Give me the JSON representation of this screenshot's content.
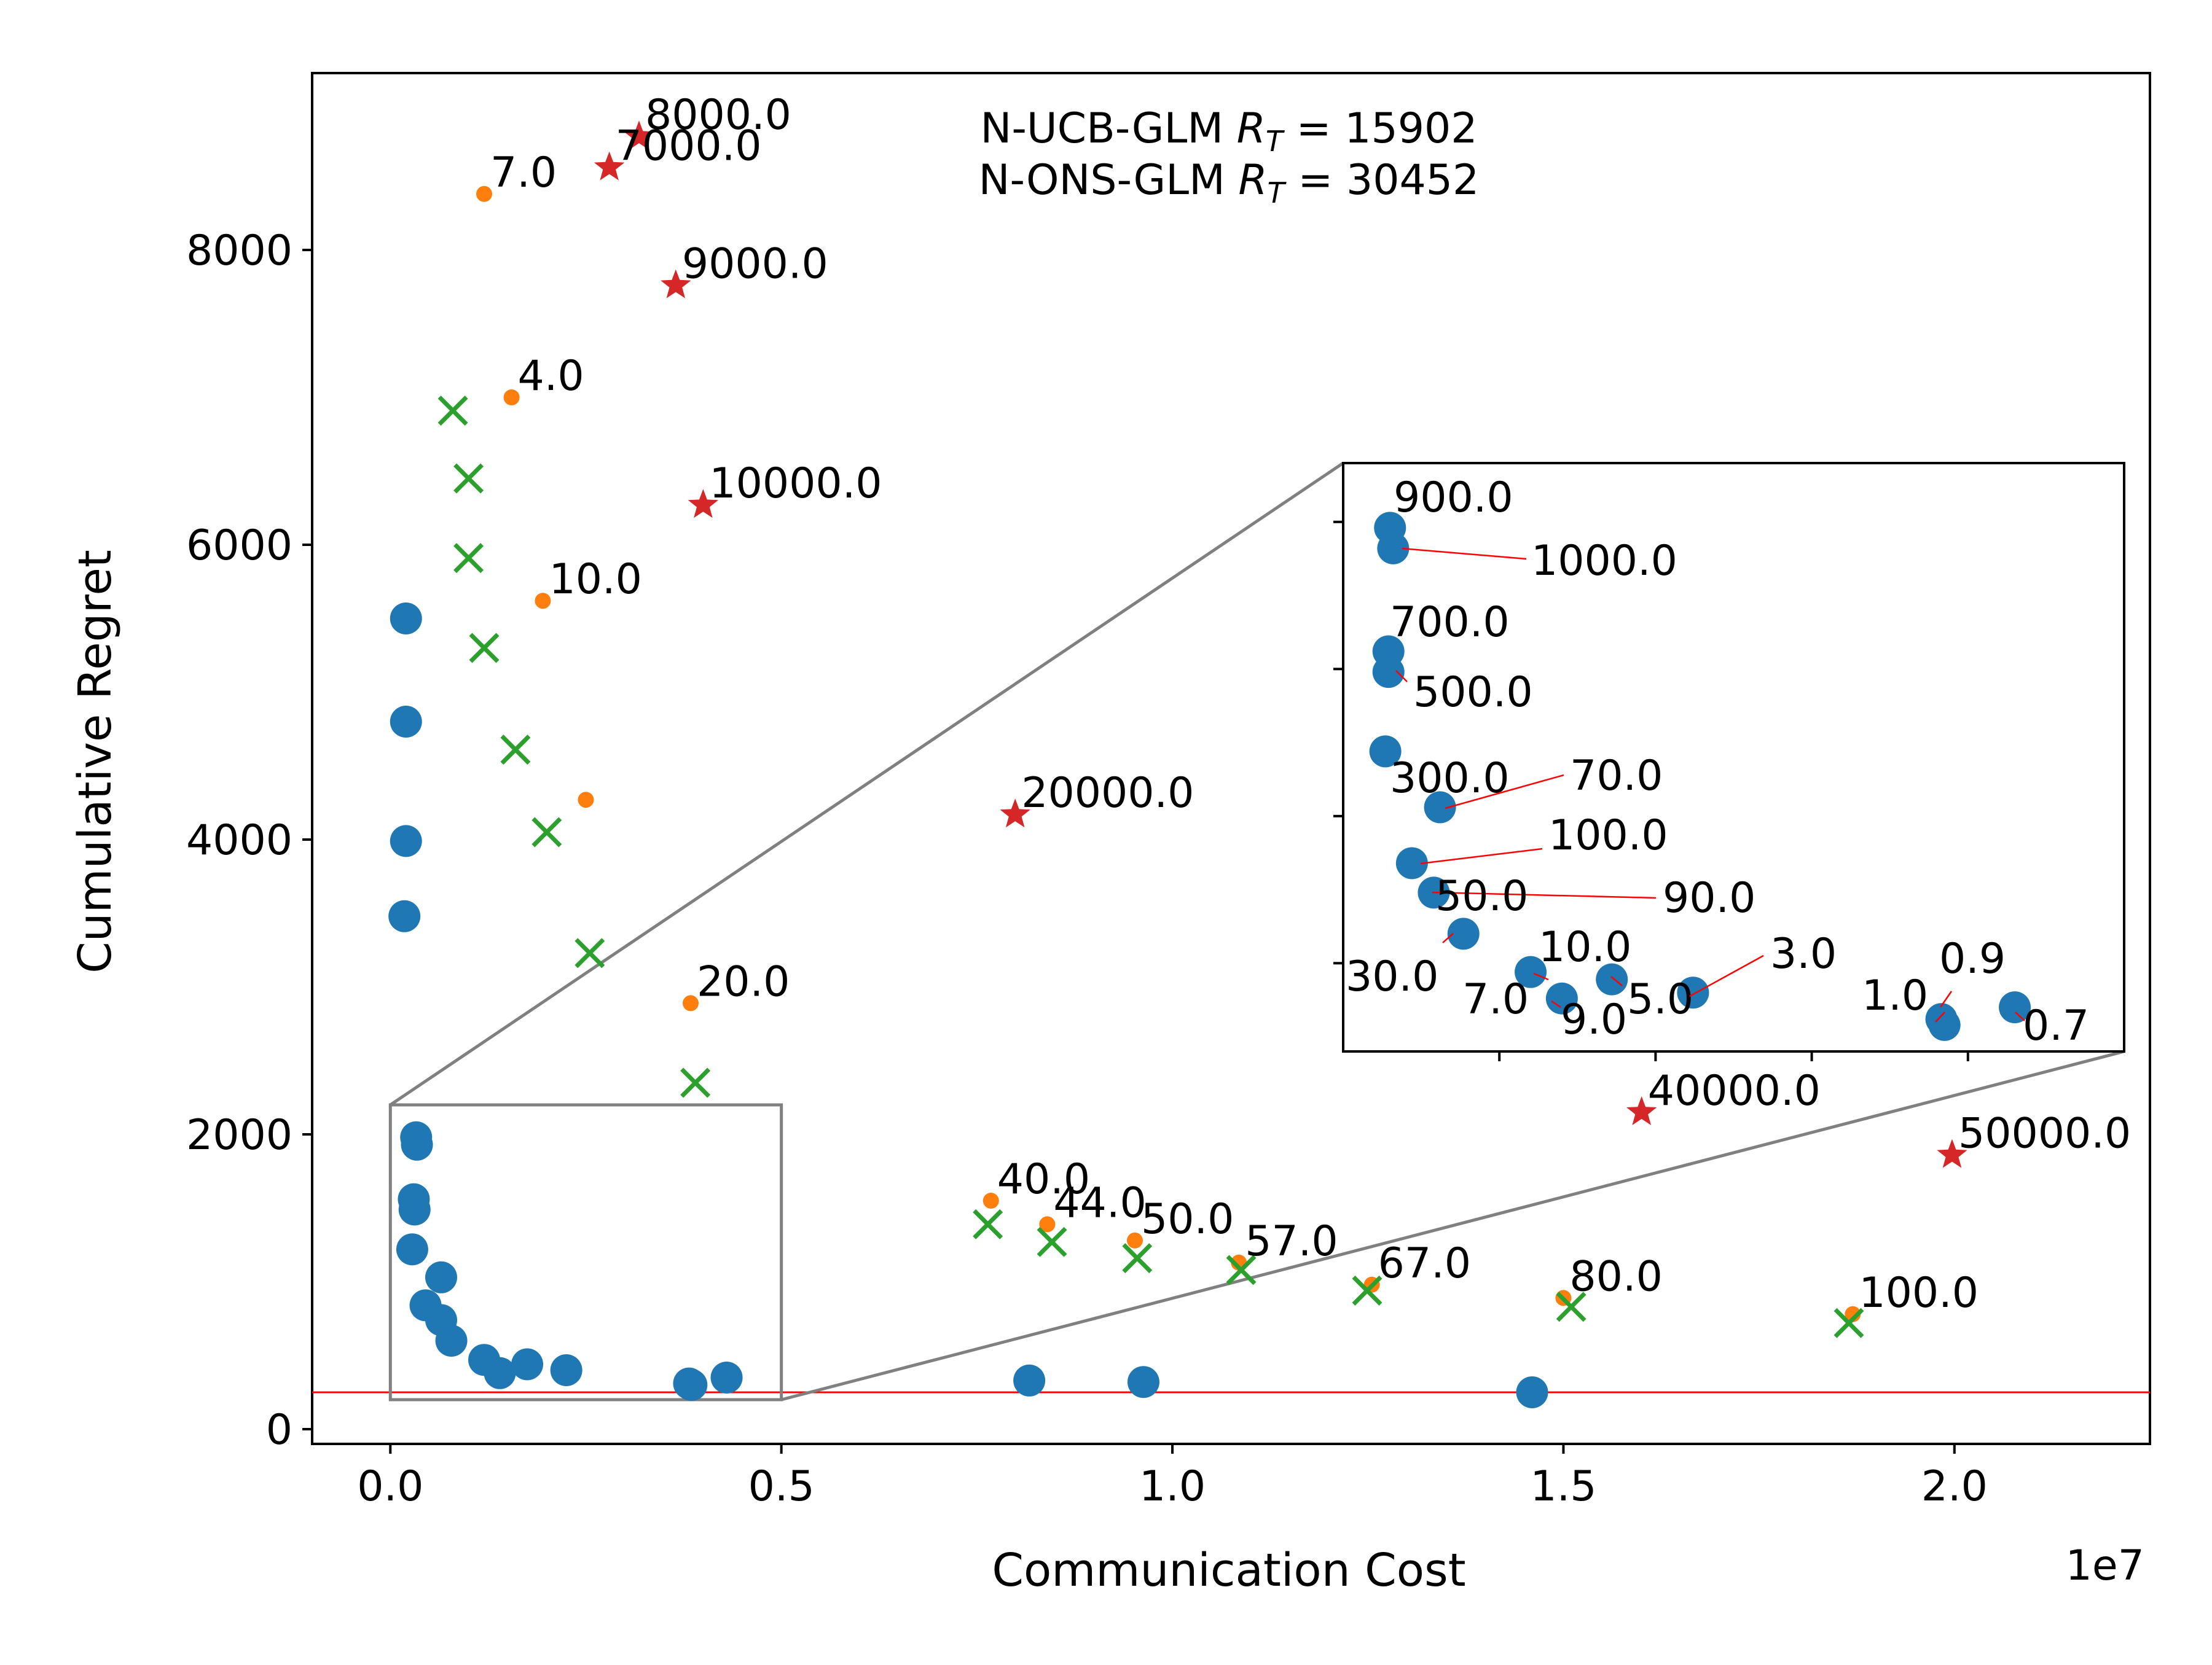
{
  "chart_data": {
    "type": "scatter",
    "xlabel": "Communication Cost",
    "ylabel": "Cumulative Regret",
    "x_offset_label": "1e7",
    "xlim": [
      -0.1,
      2.25
    ],
    "ylim": [
      -100,
      9200
    ],
    "xticks": [
      0.0,
      0.5,
      1.0,
      1.5,
      2.0
    ],
    "xtick_labels": [
      "0.0",
      "0.5",
      "1.0",
      "1.5",
      "2.0"
    ],
    "yticks": [
      0,
      2000,
      4000,
      6000,
      8000
    ],
    "ytick_labels": [
      "0",
      "2000",
      "4000",
      "6000",
      "8000"
    ],
    "text_lines": [
      "N-UCB-GLM R_T = 15902",
      "N-ONS-GLM R_T = 30452"
    ],
    "reference_line_y": 250,
    "colors": {
      "blue": "#1f77b4",
      "orange": "#ff7f0e",
      "green": "#2ca02c",
      "red": "#d62728",
      "refline": "#ff0000",
      "zoom": "#808080"
    },
    "series": [
      {
        "name": "blue-circle",
        "marker": "circle",
        "color": "#1f77b4",
        "points": [
          {
            "x": 0.02,
            "y": 5500
          },
          {
            "x": 0.02,
            "y": 4800
          },
          {
            "x": 0.02,
            "y": 3990
          },
          {
            "x": 0.018,
            "y": 3480
          },
          {
            "x": 0.033,
            "y": 1980
          },
          {
            "x": 0.034,
            "y": 1930
          },
          {
            "x": 0.03,
            "y": 1560
          },
          {
            "x": 0.031,
            "y": 1490
          },
          {
            "x": 0.028,
            "y": 1220
          },
          {
            "x": 0.065,
            "y": 1030
          },
          {
            "x": 0.045,
            "y": 840
          },
          {
            "x": 0.065,
            "y": 740
          },
          {
            "x": 0.078,
            "y": 600
          },
          {
            "x": 0.12,
            "y": 470
          },
          {
            "x": 0.14,
            "y": 380
          },
          {
            "x": 0.175,
            "y": 440
          },
          {
            "x": 0.225,
            "y": 400
          },
          {
            "x": 0.382,
            "y": 310
          },
          {
            "x": 0.385,
            "y": 300
          },
          {
            "x": 0.43,
            "y": 350
          },
          {
            "x": 0.817,
            "y": 330
          },
          {
            "x": 0.963,
            "y": 320
          },
          {
            "x": 1.46,
            "y": 250
          }
        ]
      },
      {
        "name": "orange-dot",
        "marker": "smalldot",
        "color": "#ff7f0e",
        "points": [
          {
            "x": 0.12,
            "y": 8380,
            "label": "7.0"
          },
          {
            "x": 0.155,
            "y": 7000,
            "label": "4.0"
          },
          {
            "x": 0.195,
            "y": 5620,
            "label": "10.0"
          },
          {
            "x": 0.25,
            "y": 4270
          },
          {
            "x": 0.384,
            "y": 2890,
            "label": "20.0"
          },
          {
            "x": 0.768,
            "y": 1550,
            "label": "40.0"
          },
          {
            "x": 0.84,
            "y": 1390,
            "label": "44.0"
          },
          {
            "x": 0.952,
            "y": 1280,
            "label": "50.0"
          },
          {
            "x": 1.085,
            "y": 1130,
            "label": "57.0"
          },
          {
            "x": 1.255,
            "y": 980,
            "label": "67.0"
          },
          {
            "x": 1.5,
            "y": 890,
            "label": "80.0"
          },
          {
            "x": 1.87,
            "y": 780,
            "label": "100.0"
          }
        ]
      },
      {
        "name": "green-x",
        "marker": "x",
        "color": "#2ca02c",
        "points": [
          {
            "x": 0.08,
            "y": 6910
          },
          {
            "x": 0.1,
            "y": 6450
          },
          {
            "x": 0.1,
            "y": 5910
          },
          {
            "x": 0.12,
            "y": 5300
          },
          {
            "x": 0.16,
            "y": 4610
          },
          {
            "x": 0.2,
            "y": 4050
          },
          {
            "x": 0.255,
            "y": 3230
          },
          {
            "x": 0.39,
            "y": 2350
          },
          {
            "x": 0.764,
            "y": 1390
          },
          {
            "x": 0.846,
            "y": 1270
          },
          {
            "x": 0.955,
            "y": 1160
          },
          {
            "x": 1.088,
            "y": 1080
          },
          {
            "x": 1.249,
            "y": 940
          },
          {
            "x": 1.51,
            "y": 830
          },
          {
            "x": 1.865,
            "y": 720
          }
        ]
      },
      {
        "name": "red-star",
        "marker": "star",
        "color": "#d62728",
        "points": [
          {
            "x": 0.318,
            "y": 8770,
            "label": "8000.0"
          },
          {
            "x": 0.28,
            "y": 8560,
            "label": "7000.0"
          },
          {
            "x": 0.365,
            "y": 7760,
            "label": "9000.0"
          },
          {
            "x": 0.4,
            "y": 6270,
            "label": "10000.0"
          },
          {
            "x": 0.799,
            "y": 4170,
            "label": "20000.0"
          },
          {
            "x": 1.6,
            "y": 2150,
            "label": "40000.0"
          },
          {
            "x": 1.997,
            "y": 1860,
            "label": "50000.0"
          }
        ]
      }
    ],
    "inset": {
      "source_xlim": [
        0.0,
        0.5
      ],
      "source_ylim": [
        200,
        2200
      ],
      "xlim": [
        0.0,
        0.5
      ],
      "ylim": [
        200,
        2200
      ],
      "points": [
        {
          "x": 0.03,
          "y": 1980,
          "label": "900.0"
        },
        {
          "x": 0.032,
          "y": 1910,
          "label": "1000.0"
        },
        {
          "x": 0.029,
          "y": 1560,
          "label": "700.0"
        },
        {
          "x": 0.029,
          "y": 1490,
          "label": "500.0"
        },
        {
          "x": 0.027,
          "y": 1220,
          "label": "300.0"
        },
        {
          "x": 0.062,
          "y": 1030,
          "label": "70.0"
        },
        {
          "x": 0.044,
          "y": 840,
          "label": "100.0"
        },
        {
          "x": 0.058,
          "y": 740,
          "label": "90.0"
        },
        {
          "x": 0.077,
          "y": 600,
          "label": "50.0"
        },
        {
          "x": 0.12,
          "y": 470,
          "label": "10.0"
        },
        {
          "x": 0.14,
          "y": 380,
          "label": "7.0"
        },
        {
          "x": 0.172,
          "y": 445,
          "label": "5.0"
        },
        {
          "x": 0.224,
          "y": 400,
          "label": "3.0"
        },
        {
          "x": 0.383,
          "y": 310,
          "label": "1.0"
        },
        {
          "x": 0.385,
          "y": 290,
          "label": "0.9"
        },
        {
          "x": 0.43,
          "y": 350,
          "label": "0.7"
        },
        {
          "label": "30.0"
        },
        {
          "label": "9.0"
        }
      ]
    }
  }
}
